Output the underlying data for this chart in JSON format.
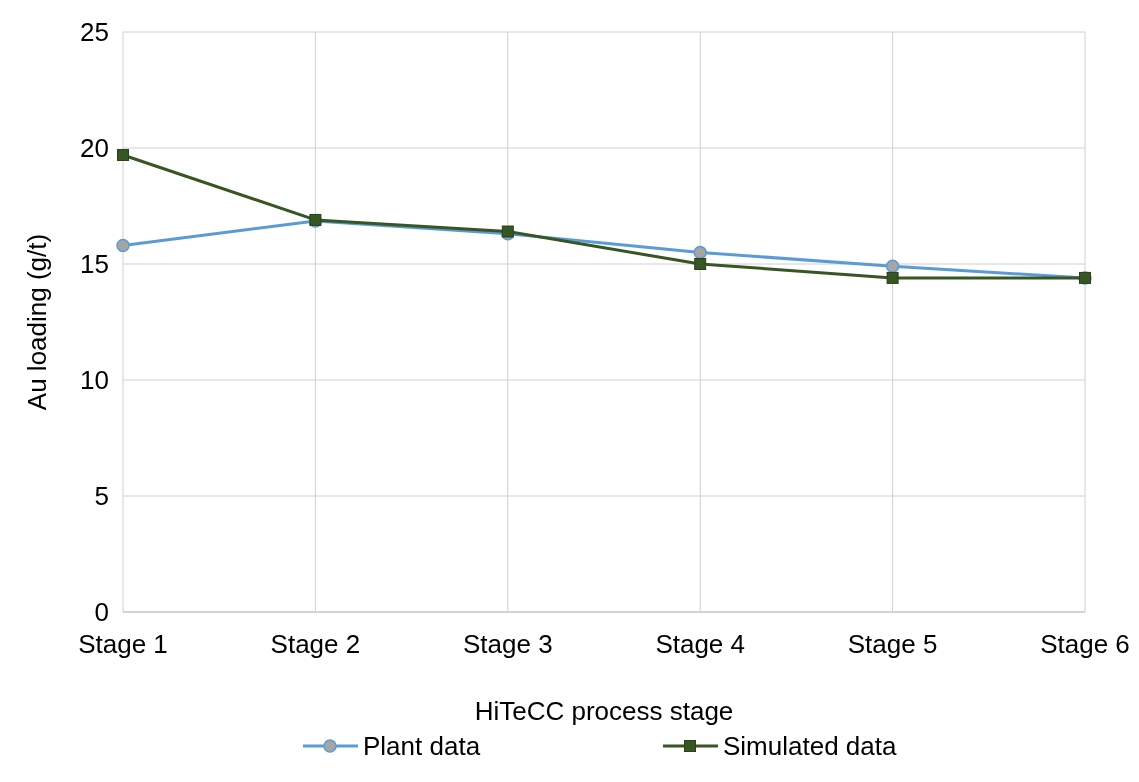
{
  "chart_data": {
    "type": "line",
    "xlabel": "HiTeCC process stage",
    "ylabel": "Au loading (g/t)",
    "categories": [
      "Stage 1",
      "Stage 2",
      "Stage 3",
      "Stage 4",
      "Stage 5",
      "Stage 6"
    ],
    "series": [
      {
        "name": "Plant data",
        "color": "#5b9bd5",
        "marker": "circle",
        "values": [
          15.8,
          16.85,
          16.3,
          15.5,
          14.9,
          14.4
        ]
      },
      {
        "name": "Simulated data",
        "color": "#375623",
        "marker": "square",
        "values": [
          19.7,
          16.9,
          16.4,
          15.0,
          14.4,
          14.4
        ]
      }
    ],
    "ylim": [
      0,
      25
    ],
    "yticks": [
      0,
      5,
      10,
      15,
      20,
      25
    ],
    "grid": true,
    "legend": "bottom",
    "line_style": "solid"
  }
}
